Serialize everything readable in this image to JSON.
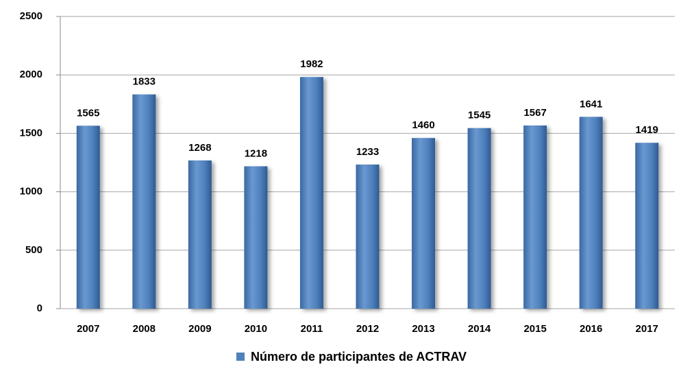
{
  "chart_data": {
    "type": "bar",
    "categories": [
      "2007",
      "2008",
      "2009",
      "2010",
      "2011",
      "2012",
      "2013",
      "2014",
      "2015",
      "2016",
      "2017"
    ],
    "series": [
      {
        "name": "Número de participantes de ACTRAV",
        "color": "#4f81bd",
        "values": [
          1565,
          1833,
          1268,
          1218,
          1982,
          1233,
          1460,
          1545,
          1567,
          1641,
          1419
        ]
      }
    ],
    "ylim": [
      0,
      2500
    ],
    "yticks": [
      0,
      500,
      1000,
      1500,
      2000,
      2500
    ],
    "grid": true,
    "legend": "bottom"
  }
}
